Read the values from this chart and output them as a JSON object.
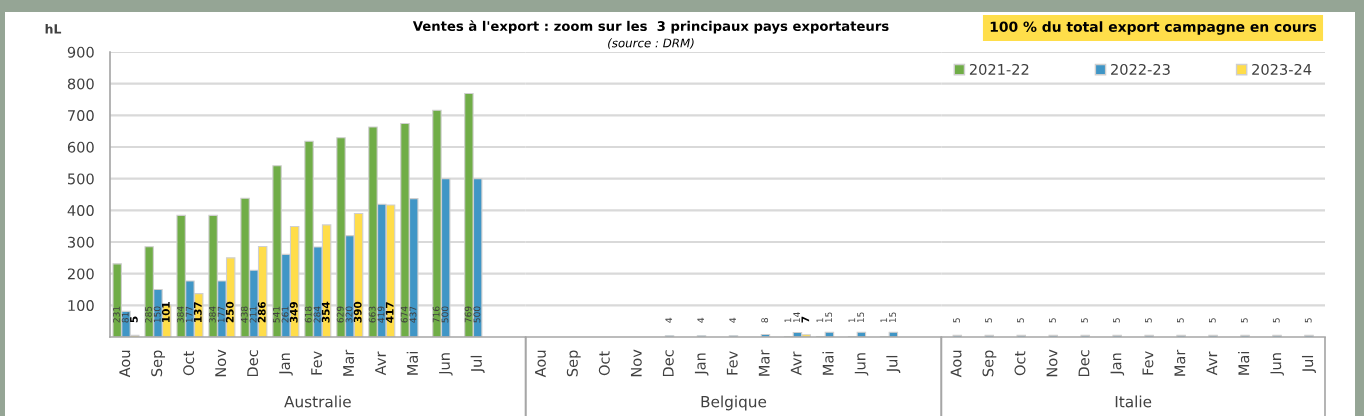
{
  "chart_data": [
    {
      "type": "bar",
      "ylabel": "hL",
      "xlabel": "Australie",
      "categories": [
        "Aou",
        "Sep",
        "Oct",
        "Nov",
        "Dec",
        "Jan",
        "Fev",
        "Mar",
        "Avr",
        "Mai",
        "Jun",
        "Jul",
        null
      ],
      "series": [
        {
          "color": "#70ad47",
          "values": [
            231,
            285,
            384,
            384,
            438,
            541,
            618,
            629,
            663,
            674,
            716,
            769,
            null
          ]
        },
        {
          "color": "#4096c6",
          "values": [
            81,
            150,
            177,
            177,
            211,
            261,
            284,
            320,
            419,
            437,
            500,
            500,
            null
          ]
        },
        {
          "color": "#ffdd4a",
          "values": [
            5,
            101,
            137,
            250,
            286,
            349,
            354,
            390,
            417,
            null,
            null,
            null,
            null
          ]
        }
      ],
      "ylim": [
        0,
        900
      ],
      "yticks": [
        100,
        200,
        300,
        400,
        500,
        600,
        700,
        800,
        900
      ],
      "grid": "y",
      "data_labels": true
    },
    {
      "type": "bar",
      "title": "Ventes à l'export : zoom sur les  3 principaux pays exportateurs",
      "subtitle": "(source : DRM)",
      "xlabel": "Belgique",
      "categories": [
        "Aou",
        "Sep",
        "Oct",
        "Nov",
        "Dec",
        "Jan",
        "Fev",
        "Mar",
        "Avr",
        "Mai",
        "Jun",
        "Jul",
        null
      ],
      "series": [
        {
          "color": "#70ad47",
          "values": [
            null,
            null,
            null,
            null,
            null,
            null,
            null,
            null,
            1,
            1,
            1,
            1,
            null
          ]
        },
        {
          "color": "#4096c6",
          "values": [
            null,
            null,
            null,
            null,
            4,
            4,
            4,
            8,
            14,
            15,
            15,
            15,
            null
          ]
        },
        {
          "color": "#ffdd4a",
          "values": [
            null,
            null,
            null,
            null,
            null,
            null,
            null,
            null,
            7,
            null,
            null,
            null,
            null
          ]
        }
      ],
      "ylim": [
        0,
        900
      ],
      "yticks": [
        100,
        200,
        300,
        400,
        500,
        600,
        700,
        800,
        900
      ],
      "grid": "y",
      "data_labels": true,
      "tick_labels": "x"
    },
    {
      "type": "bar",
      "xlabel": "Italie",
      "categories": [
        "Aou",
        "Sep",
        "Oct",
        "Nov",
        "Dec",
        "Jan",
        "Fev",
        "Mar",
        "Avr",
        "Mai",
        "Jun",
        "Jul"
      ],
      "series": [
        {
          "name": "2021-22",
          "color": "#70ad47",
          "values": [
            null,
            null,
            null,
            null,
            null,
            null,
            null,
            null,
            null,
            null,
            null,
            null
          ]
        },
        {
          "name": "2022-23",
          "color": "#4096c6",
          "values": [
            5,
            5,
            5,
            5,
            5,
            5,
            5,
            5,
            5,
            5,
            5,
            5
          ]
        },
        {
          "name": "2023-24",
          "color": "#ffdd4a",
          "values": [
            null,
            null,
            null,
            null,
            null,
            null,
            null,
            null,
            null,
            null,
            null,
            null
          ]
        }
      ],
      "ylim": [
        0,
        900
      ],
      "yticks": [
        100,
        200,
        300,
        400,
        500,
        600,
        700,
        800,
        900
      ],
      "grid": "y",
      "data_labels": true,
      "tick_labels": "x",
      "legend": "top",
      "annotations": [
        "100 % du total export campagne en cours"
      ]
    }
  ]
}
